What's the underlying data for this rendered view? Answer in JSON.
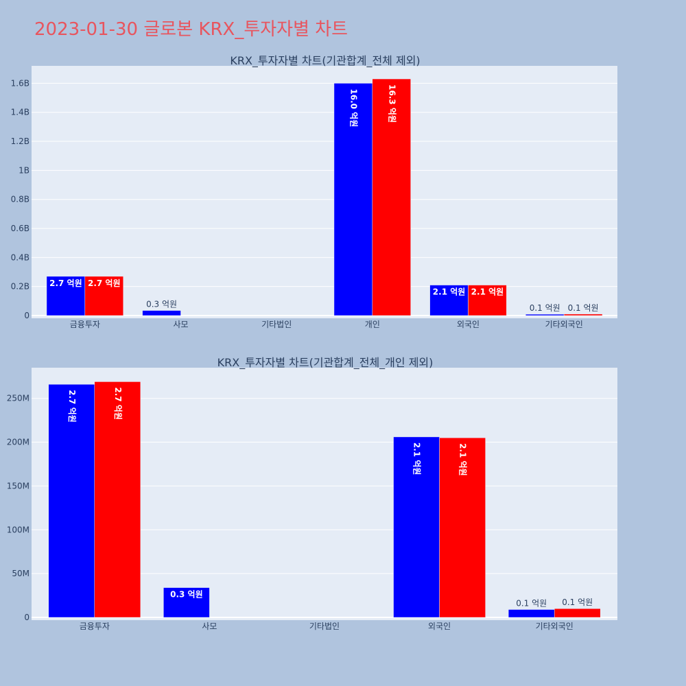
{
  "page": {
    "title": "2023-01-30 글로본 KRX_투자자별 차트"
  },
  "colors": {
    "background": "#b0c4de",
    "plot_bg": "#e5ecf6",
    "grid": "#ffffff",
    "series_a": "#0000ff",
    "series_b": "#ff0000",
    "title": "#e8555e",
    "text": "#2a3f5f"
  },
  "chart_data": [
    {
      "type": "bar",
      "title": "KRX_투자자별 차트(기관합계_전체 제외)",
      "categories": [
        "금융투자",
        "사모",
        "기타법인",
        "개인",
        "외국인",
        "기타외국인"
      ],
      "series": [
        {
          "name": "series-1",
          "color": "#0000ff",
          "values": [
            270000000,
            35000000,
            0,
            1600000000,
            210000000,
            9000000
          ]
        },
        {
          "name": "series-2",
          "color": "#ff0000",
          "values": [
            270000000,
            0,
            0,
            1630000000,
            210000000,
            10000000
          ]
        }
      ],
      "labels": [
        [
          "2.7 억원",
          "0.3 억원",
          "",
          "16.0 억원",
          "2.1 억원",
          "0.1 억원"
        ],
        [
          "2.7 억원",
          "",
          "",
          "16.3 억원",
          "2.1 억원",
          "0.1 억원"
        ]
      ],
      "yticks": [
        0,
        200000000,
        400000000,
        600000000,
        800000000,
        1000000000,
        1200000000,
        1400000000,
        1600000000
      ],
      "ytick_labels": [
        "0",
        "0.2B",
        "0.4B",
        "0.6B",
        "0.8B",
        "1B",
        "1.2B",
        "1.4B",
        "1.6B"
      ],
      "ylim": [
        0,
        1720000000
      ],
      "xlabel": "",
      "ylabel": "",
      "grid": true
    },
    {
      "type": "bar",
      "title": "KRX_투자자별 차트(기관합계_전체_개인 제외)",
      "categories": [
        "금융투자",
        "사모",
        "기타법인",
        "외국인",
        "기타외국인"
      ],
      "series": [
        {
          "name": "series-1",
          "color": "#0000ff",
          "values": [
            266000000,
            34000000,
            0,
            206000000,
            9000000
          ]
        },
        {
          "name": "series-2",
          "color": "#ff0000",
          "values": [
            269000000,
            0,
            0,
            205000000,
            10000000
          ]
        }
      ],
      "labels": [
        [
          "2.7 억원",
          "0.3 억원",
          "",
          "2.1 억원",
          "0.1 억원"
        ],
        [
          "2.7 억원",
          "",
          "",
          "2.1 억원",
          "0.1 억원"
        ]
      ],
      "yticks": [
        0,
        50000000,
        100000000,
        150000000,
        200000000,
        250000000
      ],
      "ytick_labels": [
        "0",
        "50M",
        "100M",
        "150M",
        "200M",
        "250M"
      ],
      "ylim": [
        0,
        285000000
      ],
      "xlabel": "",
      "ylabel": "",
      "grid": true
    }
  ]
}
